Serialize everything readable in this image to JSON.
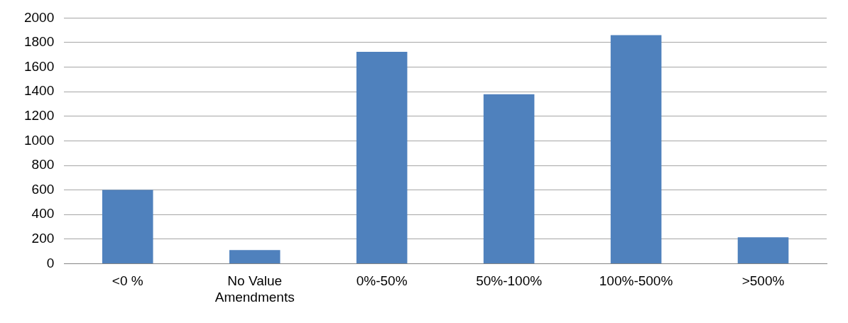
{
  "chart_data": {
    "type": "bar",
    "categories": [
      "<0 %",
      "No Value Amendments",
      "0%-50%",
      "50%-100%",
      "100%-500%",
      ">500%"
    ],
    "values": [
      600,
      110,
      1725,
      1380,
      1860,
      215
    ],
    "color": "#4f81bd",
    "ylim": [
      0,
      2000
    ],
    "yticks": [
      0,
      200,
      400,
      600,
      800,
      1000,
      1200,
      1400,
      1600,
      1800,
      2000
    ],
    "grid": "y"
  }
}
